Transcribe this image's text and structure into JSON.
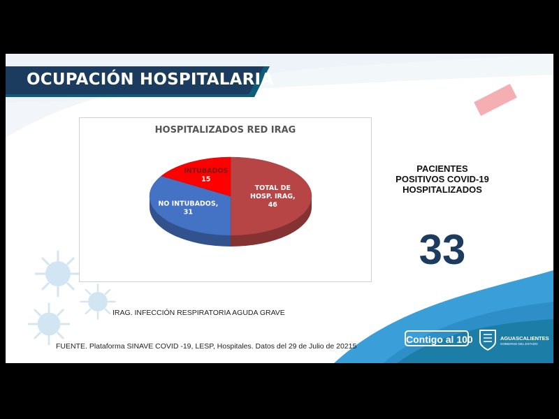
{
  "header": {
    "title": "OCUPACIÓN HOSPITALARIA"
  },
  "chart_data": {
    "type": "pie",
    "title": "HOSPITALIZADOS RED IRAG",
    "slices": [
      {
        "label_lines": [
          "TOTAL DE",
          "HOSP. IRAG,"
        ],
        "value": 46,
        "color": "#b84545"
      },
      {
        "label_lines": [
          "NO INTUBADOS,"
        ],
        "value": 31,
        "color": "#4472c4"
      },
      {
        "label_lines": [
          "INTUBADOS"
        ],
        "value": 15,
        "color": "#ff0000"
      }
    ],
    "legend": "none"
  },
  "covid": {
    "label_lines": [
      "PACIENTES",
      "POSITIVOS COVID-19",
      "HOSPITALIZADOS"
    ],
    "value": "33"
  },
  "footnote": "IRAG. INFECCIÓN RESPIRATORIA AGUDA GRAVE",
  "source": "FUENTE. Plataforma SINAVE COVID -19, LESP, Hospitales. Datos del 29 de Julio de 20215",
  "branding": {
    "campaign": "Contigo al 100",
    "state": "AGUASCALIENTES",
    "government": "GOBIERNO DEL ESTADO"
  },
  "colors": {
    "navy": "#1b3c5e",
    "teal": "#0e6f8c",
    "light_blue": "#3a9fd8"
  }
}
